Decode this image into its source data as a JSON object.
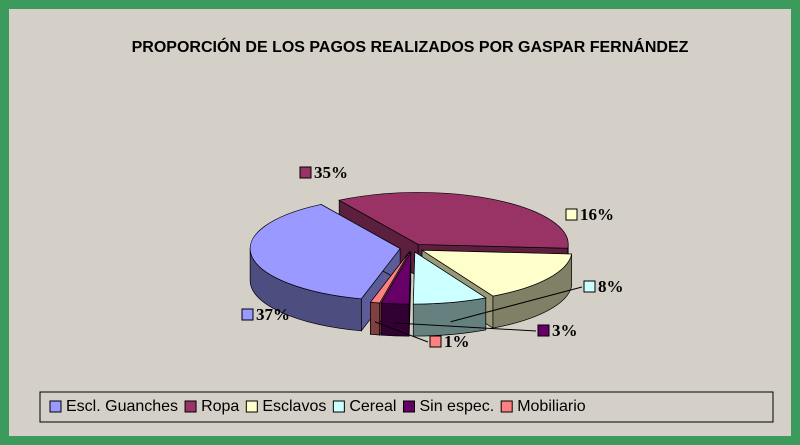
{
  "chart_data": {
    "type": "pie3d",
    "title": "PROPORCIÓN DE LOS PAGOS REALIZADOS POR GASPAR FERNÁNDEZ",
    "categories": [
      "Escl. Guanches",
      "Ropa",
      "Esclavos",
      "Cereal",
      "Sin espec.",
      "Mobiliario"
    ],
    "values": [
      37,
      35,
      16,
      8,
      3,
      1
    ],
    "value_labels": [
      "37%",
      "35%",
      "16%",
      "8%",
      "3%",
      "1%"
    ],
    "colors": [
      "#9999ff",
      "#993366",
      "#ffffcc",
      "#ccffff",
      "#660066",
      "#ff8080"
    ],
    "legend": "bottom"
  }
}
